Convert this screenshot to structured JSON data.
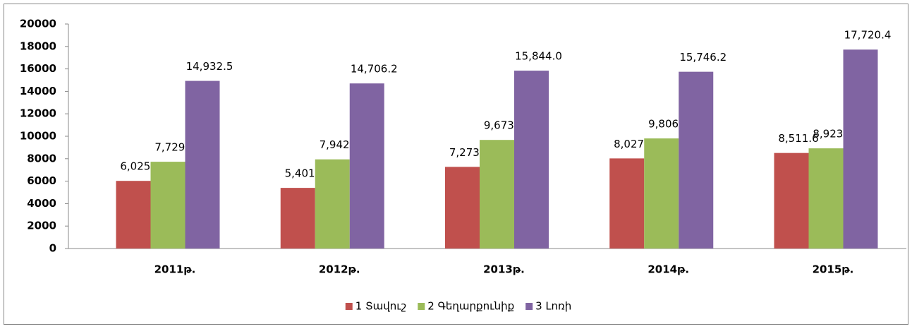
{
  "chart_data": {
    "type": "bar",
    "categories": [
      "2011թ.",
      "2012թ.",
      "2013թ.",
      "2014թ.",
      "2015թ."
    ],
    "series": [
      {
        "name": "1 Տավուշ",
        "color": "#c0504d",
        "values": [
          6025.1,
          5401.6,
          7273.6,
          8027.0,
          8511.6
        ],
        "value_labels": [
          "6,025.1",
          "5,401.6",
          "7,273.6",
          "8,027.0",
          "8,511.6"
        ]
      },
      {
        "name": "2 Գեղարքունիք",
        "color": "#9bbb59",
        "values": [
          7729.7,
          7942.4,
          9673.6,
          9806.8,
          8923.6
        ],
        "value_labels": [
          "7,729.7",
          "7,942.4",
          "9,673.6",
          "9,806.8",
          "8,923.6"
        ]
      },
      {
        "name": "3 Լոռի",
        "color": "#8064a2",
        "values": [
          14932.5,
          14706.2,
          15844.0,
          15746.2,
          17720.4
        ],
        "value_labels": [
          "14,932.5",
          "14,706.2",
          "15,844.0",
          "15,746.2",
          "17,720.4"
        ]
      }
    ],
    "ylim": [
      0,
      20000
    ],
    "yticks": [
      0,
      2000,
      4000,
      6000,
      8000,
      10000,
      12000,
      14000,
      16000,
      18000,
      20000
    ],
    "legend": "bottom"
  }
}
